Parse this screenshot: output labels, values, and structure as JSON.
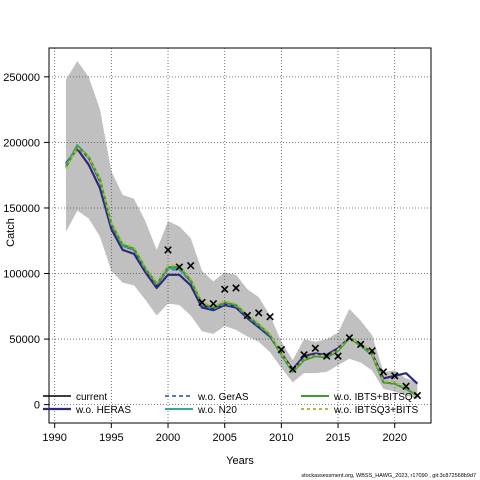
{
  "chart_data": {
    "type": "line",
    "title": "",
    "xlabel": "Years",
    "ylabel": "Catch",
    "xlim": [
      1989.5,
      2023.2
    ],
    "ylim": [
      -14000,
      272000
    ],
    "x_ticks": [
      1990,
      1995,
      2000,
      2005,
      2010,
      2015,
      2020
    ],
    "y_ticks": [
      0,
      50000,
      100000,
      150000,
      200000,
      250000
    ],
    "grid": true,
    "legend_position": "bottom",
    "footnote": "stockassessment.org, WBSS_HAWG_2023, r17090 , git:3c872568b9d7",
    "uncertainty_band": {
      "years": [
        1991,
        1992,
        1993,
        1994,
        1995,
        1996,
        1997,
        1998,
        1999,
        2000,
        2001,
        2002,
        2003,
        2004,
        2005,
        2006,
        2007,
        2008,
        2009,
        2010,
        2011,
        2012,
        2013,
        2014,
        2015,
        2016,
        2017,
        2018,
        2019,
        2020,
        2021,
        2022
      ],
      "lower": [
        132000,
        148000,
        142000,
        128000,
        102000,
        93000,
        91000,
        80000,
        68000,
        77000,
        76000,
        68000,
        56000,
        54000,
        60000,
        57000,
        52000,
        48000,
        40000,
        28000,
        17000,
        24000,
        24000,
        25000,
        30000,
        35000,
        32000,
        26000,
        12000,
        10000,
        7000,
        4000
      ],
      "upper": [
        248000,
        262000,
        250000,
        225000,
        178000,
        160000,
        157000,
        140000,
        118000,
        140000,
        136000,
        127000,
        102000,
        94000,
        101000,
        99000,
        88000,
        82000,
        68000,
        48000,
        34000,
        50000,
        48000,
        50000,
        55000,
        73000,
        64000,
        53000,
        25000,
        26000,
        20000,
        17000
      ]
    },
    "observed": {
      "marker": "x",
      "x": [
        2000,
        2001,
        2002,
        2003,
        2004,
        2005,
        2006,
        2007,
        2008,
        2009,
        2010,
        2011,
        2012,
        2013,
        2014,
        2015,
        2016,
        2017,
        2018,
        2019,
        2020,
        2021,
        2022
      ],
      "y": [
        118000,
        105000,
        106000,
        78000,
        77000,
        88000,
        89000,
        68000,
        70000,
        67000,
        42000,
        27000,
        38000,
        43000,
        37000,
        37000,
        51000,
        46000,
        41000,
        25000,
        22000,
        14000,
        7000
      ]
    },
    "series": [
      {
        "name": "current",
        "color": "#000000",
        "dash": "",
        "width": 1.5,
        "x": [
          1991,
          1992,
          1993,
          1994,
          1995,
          1996,
          1997,
          1998,
          1999,
          2000,
          2001,
          2002,
          2003,
          2004,
          2005,
          2006,
          2007,
          2008,
          2009,
          2010,
          2011,
          2012,
          2013,
          2014,
          2015,
          2016,
          2017,
          2018,
          2019,
          2020,
          2021,
          2022
        ],
        "y": [
          182000,
          197000,
          188000,
          170000,
          137000,
          121000,
          118000,
          103000,
          91000,
          104000,
          104000,
          94000,
          76000,
          73000,
          77000,
          75000,
          67000,
          60000,
          52000,
          38000,
          25000,
          34000,
          37000,
          36000,
          41000,
          51000,
          45000,
          38000,
          17000,
          16000,
          12000,
          7000
        ]
      },
      {
        "name": "w.o. HERAS",
        "color": "#2d2a78",
        "dash": "",
        "width": 2.2,
        "x": [
          1991,
          1992,
          1993,
          1994,
          1995,
          1996,
          1997,
          1998,
          1999,
          2000,
          2001,
          2002,
          2003,
          2004,
          2005,
          2006,
          2007,
          2008,
          2009,
          2010,
          2011,
          2012,
          2013,
          2014,
          2015,
          2016,
          2017,
          2018,
          2019,
          2020,
          2021,
          2022
        ],
        "y": [
          184000,
          195000,
          183000,
          165000,
          134000,
          118000,
          115000,
          101000,
          89000,
          99000,
          99000,
          91000,
          74000,
          72000,
          76000,
          74000,
          66000,
          59000,
          52000,
          39000,
          27000,
          37000,
          39000,
          38000,
          43000,
          51000,
          46000,
          39000,
          20000,
          22000,
          24000,
          16000
        ]
      },
      {
        "name": "w.o. GerAS",
        "color": "#4a7fb8",
        "dash": "4,3",
        "width": 2,
        "x": [
          1991,
          1992,
          1993,
          1994,
          1995,
          1996,
          1997,
          1998,
          1999,
          2000,
          2001,
          2002,
          2003,
          2004,
          2005,
          2006,
          2007,
          2008,
          2009,
          2010,
          2011,
          2012,
          2013,
          2014,
          2015,
          2016,
          2017,
          2018,
          2019,
          2020,
          2021,
          2022
        ],
        "y": [
          183000,
          197000,
          188000,
          171000,
          137000,
          121000,
          118000,
          103000,
          91000,
          103000,
          103000,
          94000,
          76000,
          73000,
          77000,
          75000,
          67000,
          60000,
          53000,
          38000,
          25000,
          34000,
          37000,
          36000,
          41000,
          51000,
          45000,
          38000,
          17000,
          16000,
          12000,
          7000
        ]
      },
      {
        "name": "w.o. N20",
        "color": "#35a89a",
        "dash": "",
        "width": 2,
        "x": [
          1991,
          1992,
          1993,
          1994,
          1995,
          1996,
          1997,
          1998,
          1999,
          2000,
          2001,
          2002,
          2003,
          2004,
          2005,
          2006,
          2007,
          2008,
          2009,
          2010,
          2011,
          2012,
          2013,
          2014,
          2015,
          2016,
          2017,
          2018,
          2019,
          2020,
          2021,
          2022
        ],
        "y": [
          182000,
          198000,
          189000,
          171000,
          138000,
          121000,
          119000,
          104000,
          92000,
          104000,
          104000,
          95000,
          77000,
          74000,
          78000,
          76000,
          68000,
          61000,
          53000,
          38000,
          25000,
          34000,
          37000,
          36000,
          41000,
          51000,
          45000,
          38000,
          17000,
          16000,
          12000,
          7000
        ]
      },
      {
        "name": "w.o. IBTS+BITSQ",
        "color": "#3c9a3c",
        "dash": "",
        "width": 2,
        "x": [
          1991,
          1992,
          1993,
          1994,
          1995,
          1996,
          1997,
          1998,
          1999,
          2000,
          2001,
          2002,
          2003,
          2004,
          2005,
          2006,
          2007,
          2008,
          2009,
          2010,
          2011,
          2012,
          2013,
          2014,
          2015,
          2016,
          2017,
          2018,
          2019,
          2020,
          2021,
          2022
        ],
        "y": [
          181000,
          197000,
          189000,
          172000,
          138000,
          122000,
          119000,
          104000,
          92000,
          105000,
          105000,
          95000,
          77000,
          74000,
          78000,
          76000,
          68000,
          61000,
          53000,
          38000,
          25000,
          34000,
          37000,
          36000,
          41000,
          51000,
          45000,
          38000,
          17000,
          16000,
          12000,
          7000
        ]
      },
      {
        "name": "w.o. IBTSQ3+BITS",
        "color": "#b8b83a",
        "dash": "3,3",
        "width": 2,
        "x": [
          1991,
          1992,
          1993,
          1994,
          1995,
          1996,
          1997,
          1998,
          1999,
          2000,
          2001,
          2002,
          2003,
          2004,
          2005,
          2006,
          2007,
          2008,
          2009,
          2010,
          2011,
          2012,
          2013,
          2014,
          2015,
          2016,
          2017,
          2018,
          2019,
          2020,
          2021,
          2022
        ],
        "y": [
          180000,
          196000,
          189000,
          172000,
          139000,
          123000,
          120000,
          105000,
          93000,
          106000,
          106000,
          96000,
          78000,
          75000,
          79000,
          77000,
          69000,
          62000,
          54000,
          39000,
          26000,
          35000,
          38000,
          37000,
          42000,
          52000,
          46000,
          39000,
          18000,
          17000,
          13000,
          8000
        ]
      }
    ]
  }
}
